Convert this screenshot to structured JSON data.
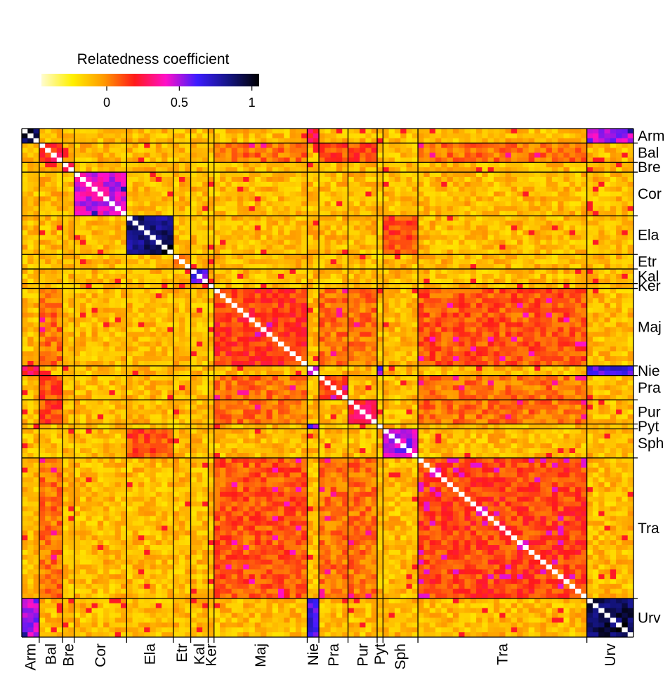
{
  "chart_data": {
    "type": "heatmap",
    "legend": {
      "title": "Relatedness coefficient",
      "ticks": [
        {
          "label": "0",
          "value": 0
        },
        {
          "label": "0.5",
          "value": 0.5
        },
        {
          "label": "1",
          "value": 1
        }
      ],
      "range": [
        -0.45,
        1.05
      ],
      "colors": [
        "#fffccf",
        "#fff000",
        "#ff9a00",
        "#ff1a1a",
        "#ff10c8",
        "#3c1cff",
        "#151585",
        "#000000"
      ]
    },
    "groups": [
      {
        "name": "Arm",
        "n": 3
      },
      {
        "name": "Bal",
        "n": 4
      },
      {
        "name": "Bre",
        "n": 2
      },
      {
        "name": "Cor",
        "n": 9
      },
      {
        "name": "Ela",
        "n": 8
      },
      {
        "name": "Etr",
        "n": 3
      },
      {
        "name": "Kal",
        "n": 3
      },
      {
        "name": "Ker",
        "n": 1
      },
      {
        "name": "Maj",
        "n": 16
      },
      {
        "name": "Nie",
        "n": 2
      },
      {
        "name": "Pra",
        "n": 5
      },
      {
        "name": "Pur",
        "n": 5
      },
      {
        "name": "Pyt",
        "n": 1
      },
      {
        "name": "Sph",
        "n": 6
      },
      {
        "name": "Tra",
        "n": 29
      },
      {
        "name": "Urv",
        "n": 8
      }
    ],
    "within_group_relatedness": {
      "Arm": 0.95,
      "Bal": 0.2,
      "Bre": 0.3,
      "Cor": 0.45,
      "Ela": 0.85,
      "Etr": 0.05,
      "Kal": 0.6,
      "Ker": 0.5,
      "Maj": 0.15,
      "Nie": 0.5,
      "Pra": 0.15,
      "Pur": 0.25,
      "Pyt": 0.5,
      "Sph": 0.5,
      "Tra": 0.13,
      "Urv": 0.92
    },
    "between_group_relatedness": {
      "Arm-Urv": 0.5,
      "Arm-Nie": 0.25,
      "Nie-Urv": 0.65,
      "Nie-Pyt": 0.6,
      "Ela-Sph": 0.12,
      "Maj-Tra": 0.1,
      "Maj-Pra": 0.05,
      "Maj-Pur": 0.05,
      "Pra-Tra": 0.05,
      "Pur-Tra": 0.05,
      "Bal-Maj": 0.05,
      "Bal-Tra": 0.05,
      "Bal-Pra": 0.12,
      "Bal-Pur": 0.12
    },
    "diagonal_value": 1.0,
    "background_relatedness": -0.1
  }
}
